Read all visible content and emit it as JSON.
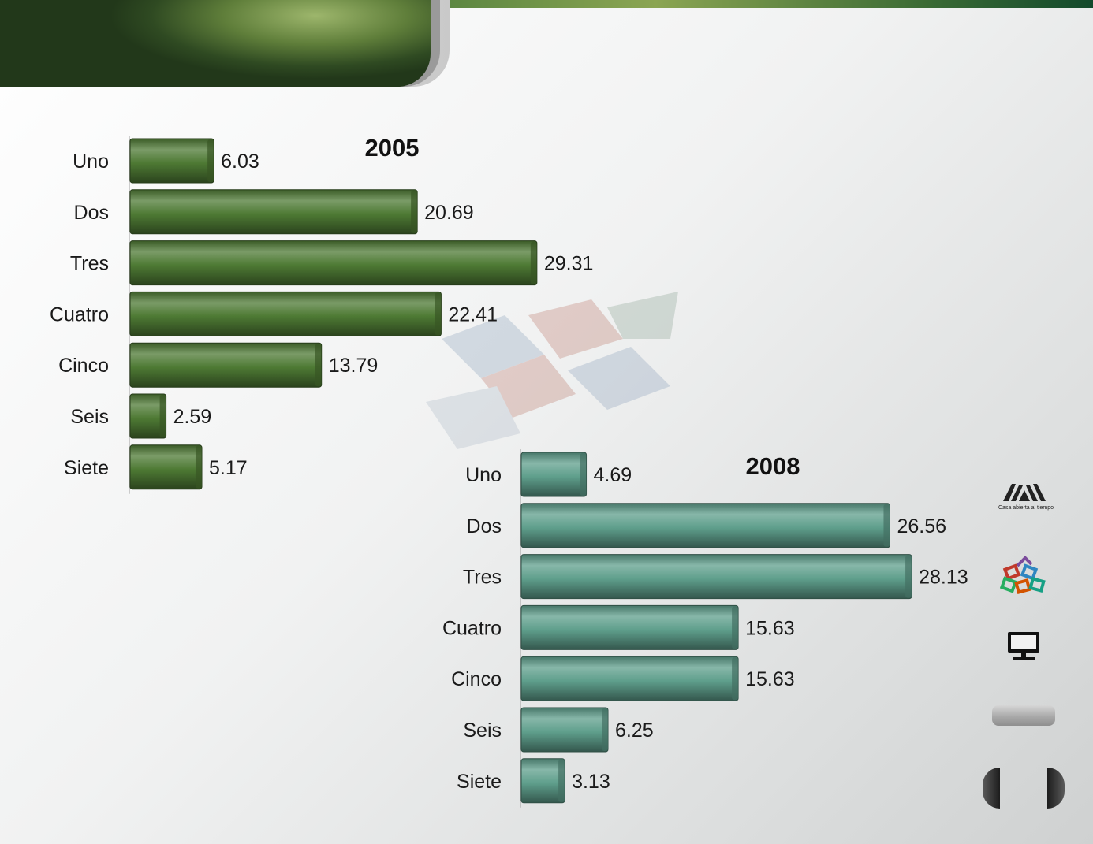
{
  "slide": {
    "banner_title": ""
  },
  "sidebar": {
    "logo_text": "Casa abierta al tiempo",
    "logo_icon": "uam-logo-icon",
    "cubes_icon": "colored-cubes-icon",
    "monitor_icon": "monitor-icon",
    "nav_prev_icon": "nav-prev-icon",
    "nav_next_icon": "nav-next-icon"
  },
  "chart_data": [
    {
      "type": "bar",
      "orientation": "horizontal",
      "title": "2005",
      "categories": [
        "Uno",
        "Dos",
        "Tres",
        "Cuatro",
        "Cinco",
        "Seis",
        "Siete"
      ],
      "values": [
        6.03,
        20.69,
        29.31,
        22.41,
        13.79,
        2.59,
        5.17
      ],
      "value_labels": [
        "6.03",
        "20.69",
        "29.31",
        "22.41",
        "13.79",
        "2.59",
        "5.17"
      ],
      "color": "#4e7a34",
      "grid": false,
      "legend": "none"
    },
    {
      "type": "bar",
      "orientation": "horizontal",
      "title": "2008",
      "categories": [
        "Uno",
        "Dos",
        "Tres",
        "Cuatro",
        "Cinco",
        "Seis",
        "Siete"
      ],
      "values": [
        4.69,
        26.56,
        28.13,
        15.63,
        15.63,
        6.25,
        3.13
      ],
      "value_labels": [
        "4.69",
        "26.56",
        "28.13",
        "15.63",
        "15.63",
        "6.25",
        "3.13"
      ],
      "color": "#5f9f8c",
      "grid": false,
      "legend": "none"
    }
  ]
}
